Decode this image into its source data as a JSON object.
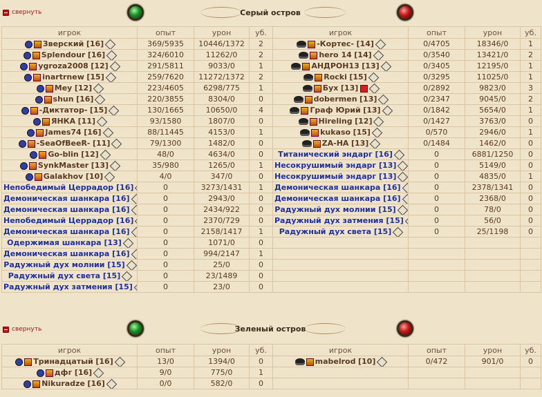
{
  "sections": [
    {
      "collapse_label": "свернуть",
      "title": "Серый остров",
      "headers": {
        "player": "игрок",
        "exp": "опыт",
        "dmg": "урон",
        "kills": "уб."
      },
      "left": [
        {
          "name": "Зверский",
          "level": "[16]",
          "exp": "369/5935",
          "dmg": "10446/1372",
          "kills": "2",
          "mob": false
        },
        {
          "name": "Splendour",
          "level": "[16]",
          "exp": "324/6010",
          "dmg": "11262/0",
          "kills": "2",
          "mob": false
        },
        {
          "name": "ygroza2008",
          "level": "[12]",
          "exp": "291/5811",
          "dmg": "9033/0",
          "kills": "1",
          "mob": false
        },
        {
          "name": "inartrnew",
          "level": "[15]",
          "exp": "259/7620",
          "dmg": "11272/1372",
          "kills": "2",
          "mob": false
        },
        {
          "name": "Mey",
          "level": "[12]",
          "exp": "223/4605",
          "dmg": "6298/775",
          "kills": "1",
          "mob": false
        },
        {
          "name": "shun",
          "level": "[16]",
          "exp": "220/3855",
          "dmg": "8304/0",
          "kills": "0",
          "mob": false
        },
        {
          "name": "-Диктатор-",
          "level": "[15]",
          "exp": "130/1665",
          "dmg": "10650/0",
          "kills": "4",
          "mob": false
        },
        {
          "name": "ЯНКА",
          "level": "[11]",
          "exp": "93/1580",
          "dmg": "1807/0",
          "kills": "0",
          "mob": false
        },
        {
          "name": "James74",
          "level": "[16]",
          "exp": "88/11445",
          "dmg": "4153/0",
          "kills": "1",
          "mob": false
        },
        {
          "name": "-SeaOfBeeR-",
          "level": "[11]",
          "exp": "79/1300",
          "dmg": "1482/0",
          "kills": "0",
          "mob": false
        },
        {
          "name": "Go-blin",
          "level": "[12]",
          "exp": "48/0",
          "dmg": "4634/0",
          "kills": "0",
          "mob": false
        },
        {
          "name": "SynkMaster",
          "level": "[13]",
          "exp": "35/980",
          "dmg": "1265/0",
          "kills": "1",
          "mob": false
        },
        {
          "name": "Galakhov",
          "level": "[10]",
          "exp": "4/0",
          "dmg": "347/0",
          "kills": "0",
          "mob": false
        },
        {
          "name": "Непобедимый Церрадор",
          "level": "[16]",
          "exp": "0",
          "dmg": "3273/1431",
          "kills": "1",
          "mob": true
        },
        {
          "name": "Демоническая шанкара",
          "level": "[16]",
          "exp": "0",
          "dmg": "2943/0",
          "kills": "0",
          "mob": true
        },
        {
          "name": "Демоническая шанкара",
          "level": "[16]",
          "exp": "0",
          "dmg": "2434/922",
          "kills": "0",
          "mob": true
        },
        {
          "name": "Непобедимый Церрадор",
          "level": "[16]",
          "exp": "0",
          "dmg": "2370/729",
          "kills": "0",
          "mob": true
        },
        {
          "name": "Демоническая шанкара",
          "level": "[16]",
          "exp": "0",
          "dmg": "2158/1417",
          "kills": "1",
          "mob": true
        },
        {
          "name": "Одержимая шанкара",
          "level": "[13]",
          "exp": "0",
          "dmg": "1071/0",
          "kills": "0",
          "mob": true
        },
        {
          "name": "Демоническая шанкара",
          "level": "[16]",
          "exp": "0",
          "dmg": "994/2147",
          "kills": "1",
          "mob": true
        },
        {
          "name": "Радужный дух молнии",
          "level": "[15]",
          "exp": "0",
          "dmg": "25/0",
          "kills": "0",
          "mob": true
        },
        {
          "name": "Радужный дух света",
          "level": "[15]",
          "exp": "0",
          "dmg": "23/1489",
          "kills": "0",
          "mob": true
        },
        {
          "name": "Радужный дух затмения",
          "level": "[15]",
          "exp": "0",
          "dmg": "23/0",
          "kills": "0",
          "mob": true
        }
      ],
      "right": [
        {
          "name": "-Кортес-",
          "level": "[14]",
          "exp": "0/4705",
          "dmg": "18346/0",
          "kills": "1",
          "mob": false
        },
        {
          "name": "hero 14",
          "level": "[14]",
          "exp": "0/3540",
          "dmg": "13421/0",
          "kills": "2",
          "mob": false
        },
        {
          "name": "АНДРОН13",
          "level": "[13]",
          "exp": "0/3405",
          "dmg": "12195/0",
          "kills": "1",
          "mob": false
        },
        {
          "name": "Rocki",
          "level": "[15]",
          "exp": "0/3295",
          "dmg": "11025/0",
          "kills": "1",
          "mob": false
        },
        {
          "name": "Бух",
          "level": "[13]",
          "exp": "0/2892",
          "dmg": "9823/0",
          "kills": "3",
          "mob": false,
          "red": true
        },
        {
          "name": "dobermen",
          "level": "[13]",
          "exp": "0/2347",
          "dmg": "9045/0",
          "kills": "2",
          "mob": false
        },
        {
          "name": "Граф Юрий",
          "level": "[13]",
          "exp": "0/1842",
          "dmg": "5654/0",
          "kills": "1",
          "mob": false
        },
        {
          "name": "Hireling",
          "level": "[12]",
          "exp": "0/1427",
          "dmg": "3763/0",
          "kills": "0",
          "mob": false
        },
        {
          "name": "kukaso",
          "level": "[15]",
          "exp": "0/570",
          "dmg": "2946/0",
          "kills": "1",
          "mob": false
        },
        {
          "name": "ZA-HA",
          "level": "[13]",
          "exp": "0/1484",
          "dmg": "1462/0",
          "kills": "0",
          "mob": false
        },
        {
          "name": "Титанический эндарг",
          "level": "[16]",
          "exp": "0",
          "dmg": "6881/1250",
          "kills": "0",
          "mob": true
        },
        {
          "name": "Несокрушимый эндарг",
          "level": "[13]",
          "exp": "0",
          "dmg": "5149/0",
          "kills": "0",
          "mob": true
        },
        {
          "name": "Несокрушимый эндарг",
          "level": "[13]",
          "exp": "0",
          "dmg": "4835/0",
          "kills": "1",
          "mob": true
        },
        {
          "name": "Демоническая шанкара",
          "level": "[16]",
          "exp": "0",
          "dmg": "2378/1341",
          "kills": "0",
          "mob": true
        },
        {
          "name": "Демоническая шанкара",
          "level": "[16]",
          "exp": "0",
          "dmg": "2368/0",
          "kills": "0",
          "mob": true
        },
        {
          "name": "Радужный дух молнии",
          "level": "[15]",
          "exp": "0",
          "dmg": "78/0",
          "kills": "0",
          "mob": true
        },
        {
          "name": "Радужный дух затмения",
          "level": "[15]",
          "exp": "0",
          "dmg": "56/0",
          "kills": "0",
          "mob": true
        },
        {
          "name": "Радужный дух света",
          "level": "[15]",
          "exp": "0",
          "dmg": "25/1198",
          "kills": "0",
          "mob": true
        }
      ]
    },
    {
      "collapse_label": "свернуть",
      "title": "Зеленый остров",
      "headers": {
        "player": "игрок",
        "exp": "опыт",
        "dmg": "урон",
        "kills": "уб."
      },
      "left": [
        {
          "name": "Тринадцатый",
          "level": "[16]",
          "exp": "13/0",
          "dmg": "1394/0",
          "kills": "0",
          "mob": false
        },
        {
          "name": "дфг",
          "level": "[16]",
          "exp": "9/0",
          "dmg": "775/0",
          "kills": "1",
          "mob": false
        },
        {
          "name": "Nikuradze",
          "level": "[16]",
          "exp": "0/0",
          "dmg": "582/0",
          "kills": "0",
          "mob": false
        }
      ],
      "right": [
        {
          "name": "mabelrod",
          "level": "[10]",
          "exp": "0/472",
          "dmg": "901/0",
          "kills": "0",
          "mob": false
        }
      ]
    }
  ],
  "colors": {
    "player": "#5a3a20",
    "mob": "#1e2fa0",
    "background": "#efe3c9",
    "grid": "#d8c5a5"
  }
}
